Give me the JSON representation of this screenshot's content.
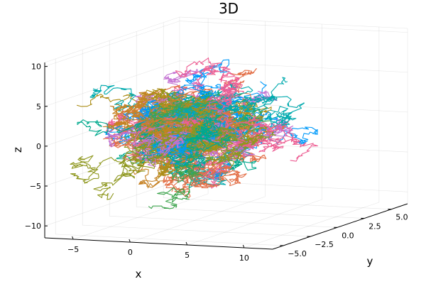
{
  "chart_data": {
    "type": "line",
    "projection": "3d",
    "title": "3D",
    "xlabel": "x",
    "ylabel": "y",
    "zlabel": "z",
    "xlim": [
      -7.5,
      12.5
    ],
    "ylim": [
      -6.0,
      6.5
    ],
    "zlim": [
      -11.5,
      10.5
    ],
    "x_ticks": [
      -5,
      0,
      5,
      10
    ],
    "y_ticks": [
      -5.0,
      -2.5,
      0.0,
      2.5,
      5.0
    ],
    "z_ticks": [
      -10,
      -5,
      0,
      5,
      10
    ],
    "x_tick_labels": [
      "−5",
      "0",
      "5",
      "10"
    ],
    "y_tick_labels": [
      "−5.0",
      "−2.5",
      "0.0",
      "2.5",
      "5.0"
    ],
    "z_tick_labels": [
      "−10",
      "−5",
      "0",
      "5",
      "10"
    ],
    "grid": true,
    "legend": false,
    "num_series": 100,
    "series_start": [
      0,
      0,
      0
    ],
    "palette": [
      "#009AFA",
      "#E36F47",
      "#3EA44E",
      "#C371D2",
      "#AC8E18",
      "#00AAAE",
      "#ED5E93",
      "#C68225",
      "#00A98D",
      "#8E971E"
    ]
  }
}
